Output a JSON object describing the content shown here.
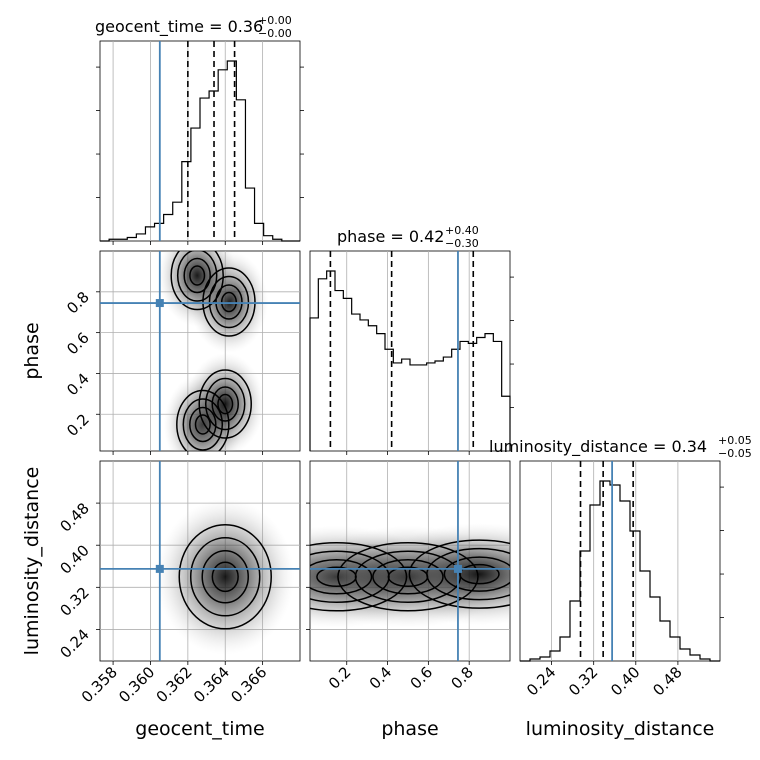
{
  "chart_data": {
    "type": "corner",
    "parameters": [
      "geocent_time",
      "phase",
      "luminosity_distance"
    ],
    "truths": {
      "geocent_time": 0.3605,
      "phase": 0.745,
      "luminosity_distance": 0.355,
      "color": "#4682b4"
    },
    "ranges": {
      "geocent_time": [
        0.3573,
        0.368
      ],
      "phase": [
        0.02,
        1.0
      ],
      "luminosity_distance": [
        0.18,
        0.56
      ]
    },
    "ticks": {
      "geocent_time": [
        "0.358",
        "0.360",
        "0.362",
        "0.364",
        "0.366"
      ],
      "phase": [
        "0.2",
        "0.4",
        "0.6",
        "0.8"
      ],
      "luminosity_distance": [
        "0.24",
        "0.32",
        "0.40",
        "0.48"
      ]
    },
    "tick_values": {
      "geocent_time": [
        0.358,
        0.36,
        0.362,
        0.364,
        0.366
      ],
      "phase": [
        0.2,
        0.4,
        0.6,
        0.8
      ],
      "luminosity_distance": [
        0.24,
        0.32,
        0.4,
        0.48
      ]
    },
    "titles": {
      "geocent_time": {
        "lhs": "geocent_time = 0.36",
        "sup": "+0.00",
        "sub": "−0.00"
      },
      "phase": {
        "lhs": "phase = 0.42",
        "sup": "+0.40",
        "sub": "−0.30"
      },
      "luminosity_distance": {
        "lhs": "luminosity_distance = 0.34",
        "sup": "+0.05",
        "sub": "−0.05"
      }
    },
    "axis_labels": {
      "x": [
        "geocent_time",
        "phase",
        "luminosity_distance"
      ],
      "y": [
        "phase",
        "luminosity_distance"
      ]
    },
    "quantiles": {
      "geocent_time": [
        0.362,
        0.3634,
        0.3645
      ],
      "phase": [
        0.12,
        0.42,
        0.82
      ],
      "luminosity_distance": [
        0.295,
        0.338,
        0.395
      ]
    },
    "histograms": {
      "geocent_time": {
        "edges_range": [
          0.3573,
          0.368
        ],
        "counts": [
          0,
          1,
          1,
          2,
          4,
          8,
          10,
          15,
          22,
          45,
          64,
          81,
          85,
          97,
          102,
          80,
          30,
          10,
          3,
          1,
          0,
          0
        ]
      },
      "phase": {
        "edges_range": [
          0.02,
          1.0
        ],
        "counts": [
          68,
          88,
          92,
          82,
          78,
          70,
          67,
          64,
          60,
          52,
          45,
          47,
          44,
          44,
          45,
          46,
          48,
          52,
          56,
          55,
          58,
          60,
          56,
          28
        ]
      },
      "luminosity_distance": {
        "edges_range": [
          0.18,
          0.56
        ],
        "counts": [
          0,
          1,
          2,
          5,
          12,
          30,
          55,
          78,
          90,
          88,
          80,
          65,
          45,
          32,
          20,
          12,
          6,
          3,
          1,
          0
        ]
      }
    },
    "contour_centers": {
      "phase_vs_geocent_time": [
        [
          0.3628,
          0.15
        ],
        [
          0.364,
          0.25
        ],
        [
          0.3642,
          0.75
        ],
        [
          0.3625,
          0.88
        ]
      ],
      "luminosity_distance_vs_geocent_time": [
        [
          0.364,
          0.34
        ]
      ],
      "luminosity_distance_vs_phase": [
        [
          0.15,
          0.34
        ],
        [
          0.5,
          0.34
        ],
        [
          0.85,
          0.345
        ]
      ]
    },
    "grid": true
  }
}
